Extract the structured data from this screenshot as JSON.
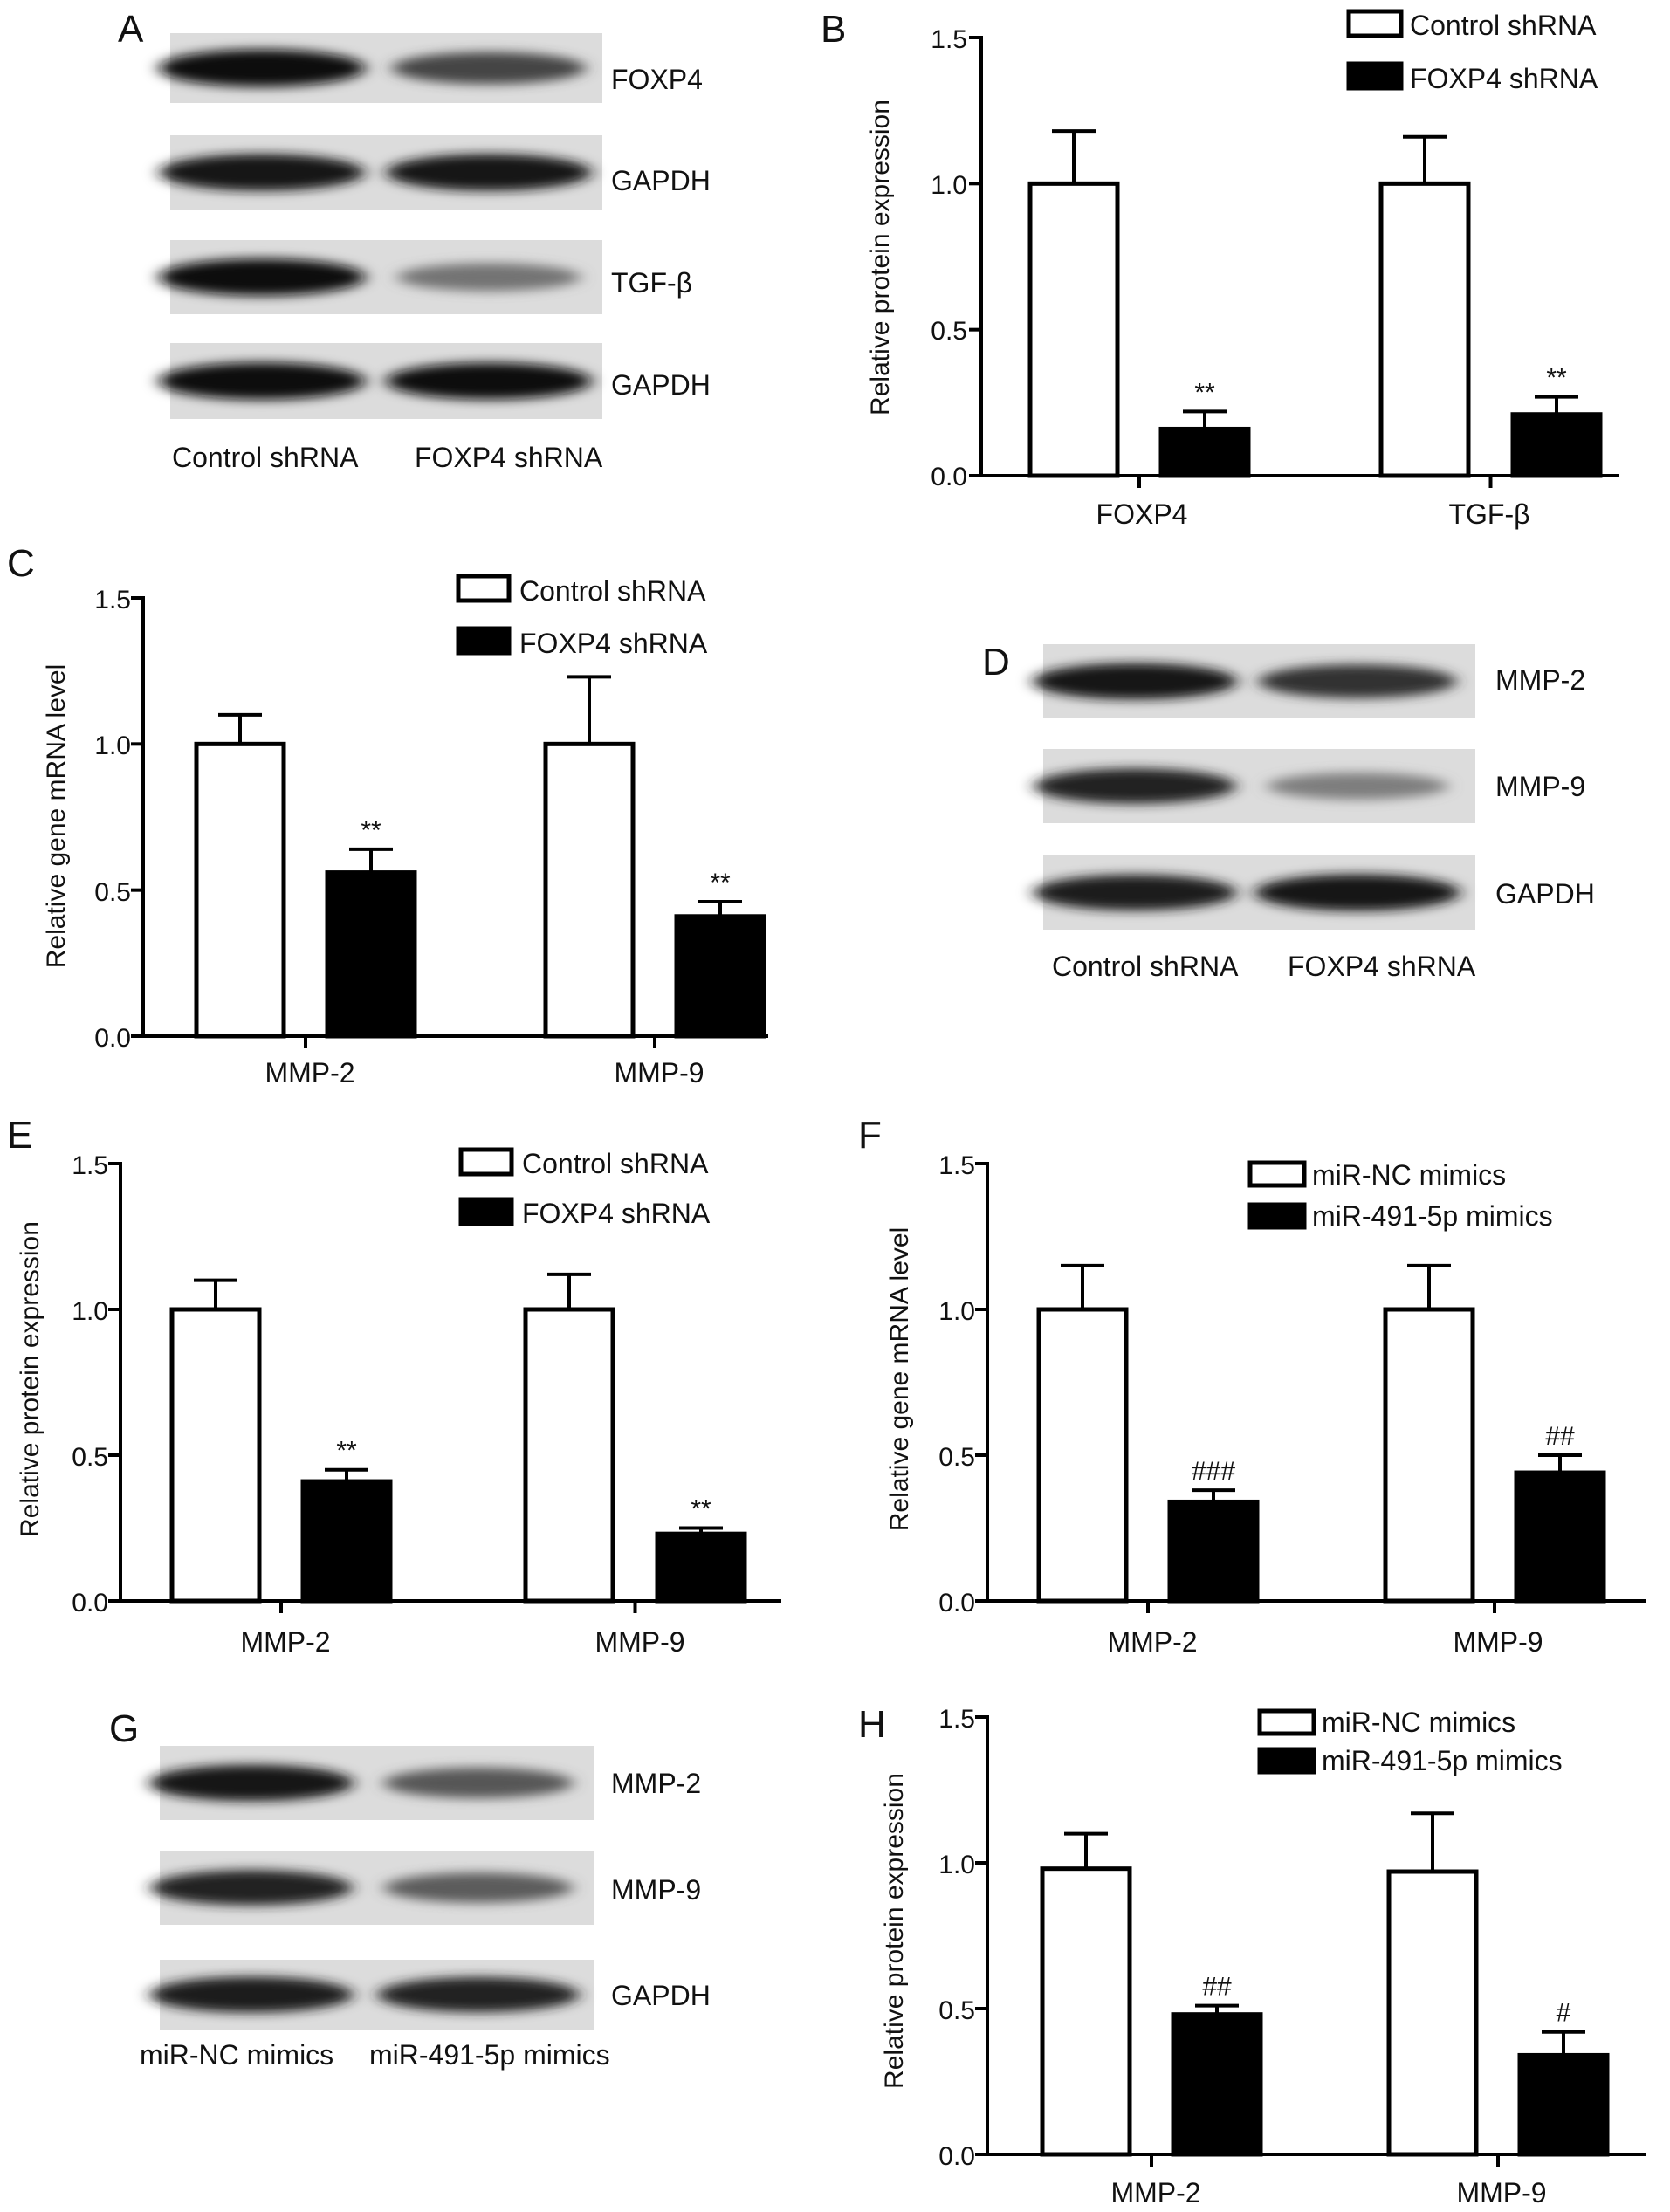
{
  "chart_data": [
    {
      "panel": "B",
      "type": "bar",
      "categories": [
        "FOXP4",
        "TGF-β"
      ],
      "series": [
        {
          "name": "Control shRNA",
          "values": [
            1.0,
            1.0
          ],
          "errors": [
            0.18,
            0.16
          ],
          "color": "#ffffff"
        },
        {
          "name": "FOXP4 shRNA",
          "values": [
            0.16,
            0.21
          ],
          "errors": [
            0.06,
            0.06
          ],
          "color": "#000000"
        }
      ],
      "significance": [
        [
          "",
          ""
        ],
        [
          "**",
          "**"
        ]
      ],
      "ylabel": "Relative protein expression",
      "ylim": [
        0,
        1.5
      ],
      "yticks": [
        "0.0",
        "0.5",
        "1.0",
        "1.5"
      ],
      "legend": "top-right"
    },
    {
      "panel": "C",
      "type": "bar",
      "categories": [
        "MMP-2",
        "MMP-9"
      ],
      "series": [
        {
          "name": "Control shRNA",
          "values": [
            1.0,
            1.0
          ],
          "errors": [
            0.1,
            0.23
          ],
          "color": "#ffffff"
        },
        {
          "name": "FOXP4 shRNA",
          "values": [
            0.56,
            0.41
          ],
          "errors": [
            0.08,
            0.05
          ],
          "color": "#000000"
        }
      ],
      "significance": [
        [
          "",
          ""
        ],
        [
          "**",
          "**"
        ]
      ],
      "ylabel": "Relative gene mRNA level",
      "ylim": [
        0,
        1.5
      ],
      "yticks": [
        "0.0",
        "0.5",
        "1.0",
        "1.5"
      ],
      "legend": "top-right"
    },
    {
      "panel": "E",
      "type": "bar",
      "categories": [
        "MMP-2",
        "MMP-9"
      ],
      "series": [
        {
          "name": "Control shRNA",
          "values": [
            1.0,
            1.0
          ],
          "errors": [
            0.1,
            0.12
          ],
          "color": "#ffffff"
        },
        {
          "name": "FOXP4 shRNA",
          "values": [
            0.41,
            0.23
          ],
          "errors": [
            0.04,
            0.02
          ],
          "color": "#000000"
        }
      ],
      "significance": [
        [
          "",
          ""
        ],
        [
          "**",
          "**"
        ]
      ],
      "ylabel": "Relative protein expression",
      "ylim": [
        0,
        1.5
      ],
      "yticks": [
        "0.0",
        "0.5",
        "1.0",
        "1.5"
      ],
      "legend": "top-right"
    },
    {
      "panel": "F",
      "type": "bar",
      "categories": [
        "MMP-2",
        "MMP-9"
      ],
      "series": [
        {
          "name": "miR-NC mimics",
          "values": [
            1.0,
            1.0
          ],
          "errors": [
            0.15,
            0.15
          ],
          "color": "#ffffff"
        },
        {
          "name": "miR-491-5p mimics",
          "values": [
            0.34,
            0.44
          ],
          "errors": [
            0.04,
            0.06
          ],
          "color": "#000000"
        }
      ],
      "significance": [
        [
          "",
          ""
        ],
        [
          "###",
          "##"
        ]
      ],
      "ylabel": "Relative gene mRNA level",
      "ylim": [
        0,
        1.5
      ],
      "yticks": [
        "0.0",
        "0.5",
        "1.0",
        "1.5"
      ],
      "legend": "top-right"
    },
    {
      "panel": "H",
      "type": "bar",
      "categories": [
        "MMP-2",
        "MMP-9"
      ],
      "series": [
        {
          "name": "miR-NC mimics",
          "values": [
            0.98,
            0.97
          ],
          "errors": [
            0.12,
            0.2
          ],
          "color": "#ffffff"
        },
        {
          "name": "miR-491-5p mimics",
          "values": [
            0.48,
            0.34
          ],
          "errors": [
            0.03,
            0.08
          ],
          "color": "#000000"
        }
      ],
      "significance": [
        [
          "",
          ""
        ],
        [
          "##",
          "#"
        ]
      ],
      "ylabel": "Relative protein expression",
      "ylim": [
        0,
        1.5
      ],
      "yticks": [
        "0.0",
        "0.5",
        "1.0",
        "1.5"
      ],
      "legend": "top-right"
    }
  ],
  "blots": [
    {
      "panel": "A",
      "rows": [
        {
          "label": "FOXP4",
          "intensity": [
            0.95,
            0.7
          ]
        },
        {
          "label": "GAPDH",
          "intensity": [
            0.92,
            0.92
          ]
        },
        {
          "label": "TGF-β",
          "intensity": [
            0.95,
            0.5
          ]
        },
        {
          "label": "GAPDH",
          "intensity": [
            0.95,
            0.93
          ]
        }
      ],
      "lanes": [
        "Control shRNA",
        "FOXP4 shRNA"
      ]
    },
    {
      "panel": "D",
      "rows": [
        {
          "label": "MMP-2",
          "intensity": [
            0.9,
            0.78
          ]
        },
        {
          "label": "MMP-9",
          "intensity": [
            0.85,
            0.45
          ]
        },
        {
          "label": "GAPDH",
          "intensity": [
            0.88,
            0.92
          ]
        }
      ],
      "lanes": [
        "Control shRNA",
        "FOXP4 shRNA"
      ]
    },
    {
      "panel": "G",
      "rows": [
        {
          "label": "MMP-2",
          "intensity": [
            0.9,
            0.62
          ]
        },
        {
          "label": "MMP-9",
          "intensity": [
            0.85,
            0.6
          ]
        },
        {
          "label": "GAPDH",
          "intensity": [
            0.88,
            0.85
          ]
        }
      ],
      "lanes": [
        "miR-NC mimics",
        "miR-491-5p mimics"
      ]
    }
  ]
}
